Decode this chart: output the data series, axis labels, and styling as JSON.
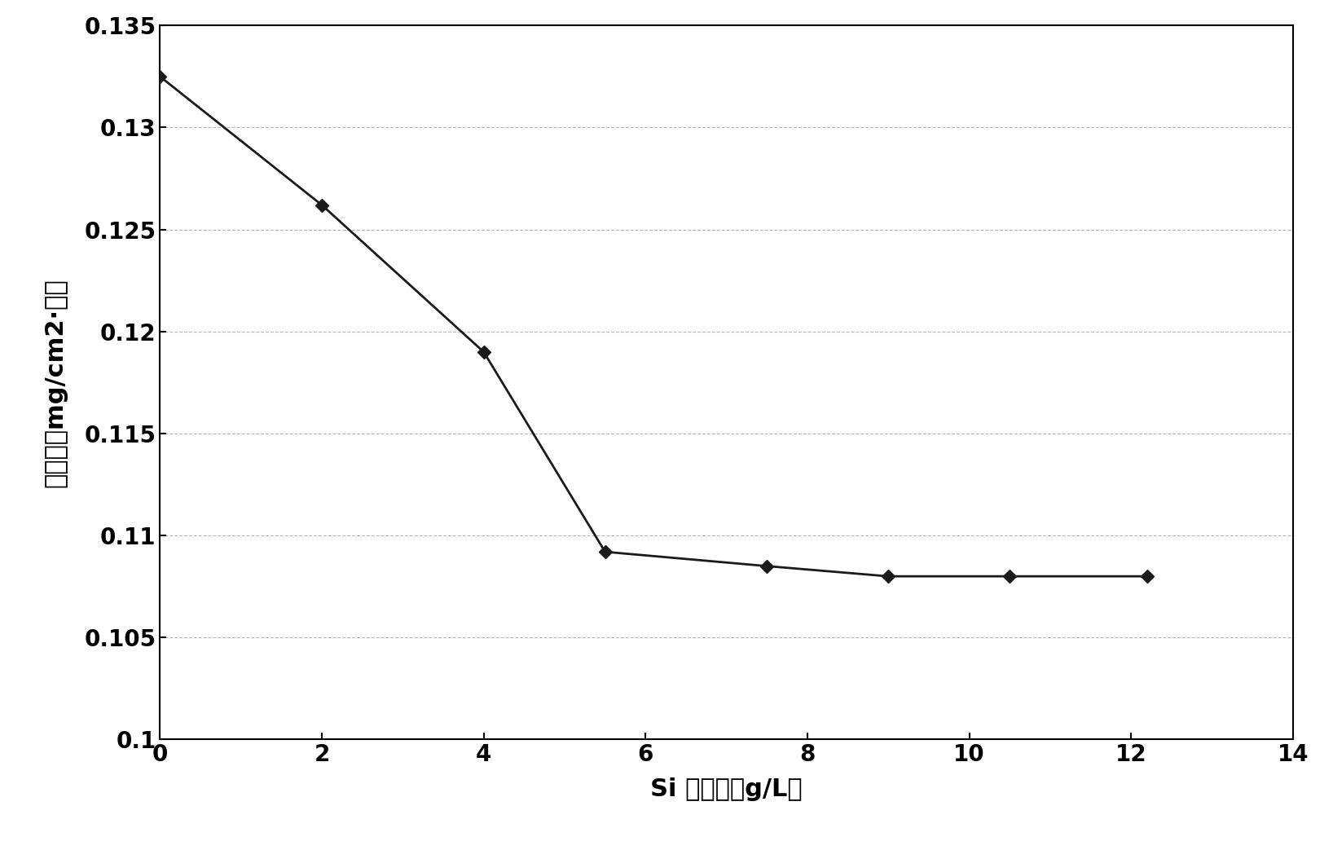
{
  "x": [
    0,
    2,
    4,
    5.5,
    7.5,
    9,
    10.5,
    12.2
  ],
  "y": [
    0.1325,
    0.1262,
    0.119,
    0.1092,
    0.1085,
    0.108,
    0.108,
    0.108
  ],
  "xlim": [
    0,
    14
  ],
  "ylim": [
    0.1,
    0.135
  ],
  "xticks": [
    0,
    2,
    4,
    6,
    8,
    10,
    12,
    14
  ],
  "yticks": [
    0.1,
    0.105,
    0.11,
    0.115,
    0.12,
    0.125,
    0.13,
    0.135
  ],
  "xlabel": "Si 溶解量（g/L）",
  "ylabel": "蚀刻率（mg/cm2·分）",
  "line_color": "#1a1a1a",
  "marker": "D",
  "marker_color": "#1a1a1a",
  "marker_size": 8,
  "line_width": 2.0,
  "grid_color": "#999999",
  "background_color": "#ffffff",
  "xlabel_fontsize": 22,
  "ylabel_fontsize": 22,
  "tick_fontsize": 20
}
